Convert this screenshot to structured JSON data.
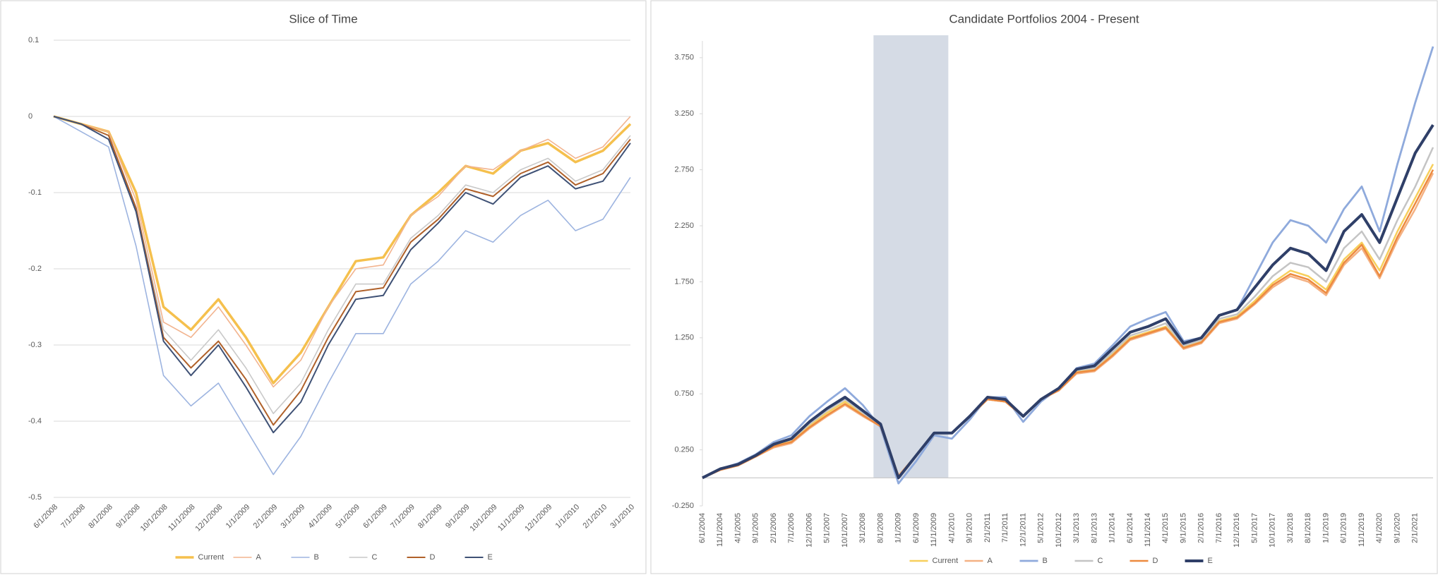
{
  "chart_data": [
    {
      "type": "line",
      "title": "Slice of Time",
      "categories": [
        "6/1/2008",
        "7/1/2008",
        "8/1/2008",
        "9/1/2008",
        "10/1/2008",
        "11/1/2008",
        "12/1/2008",
        "1/1/2009",
        "2/1/2009",
        "3/1/2009",
        "4/1/2009",
        "5/1/2009",
        "6/1/2009",
        "7/1/2009",
        "8/1/2009",
        "9/1/2009",
        "10/1/2009",
        "11/1/2009",
        "12/1/2009",
        "1/1/2010",
        "2/1/2010",
        "3/1/2010"
      ],
      "series": [
        {
          "name": "Current",
          "color": "#f5c04d",
          "values": [
            0,
            -0.01,
            -0.02,
            -0.1,
            -0.25,
            -0.28,
            -0.24,
            -0.29,
            -0.35,
            -0.31,
            -0.25,
            -0.19,
            -0.185,
            -0.13,
            -0.1,
            -0.065,
            -0.075,
            -0.045,
            -0.035,
            -0.06,
            -0.045,
            -0.01
          ]
        },
        {
          "name": "A",
          "color": "#f2b48f",
          "values": [
            0,
            -0.01,
            -0.02,
            -0.11,
            -0.27,
            -0.29,
            -0.25,
            -0.3,
            -0.355,
            -0.32,
            -0.25,
            -0.2,
            -0.195,
            -0.13,
            -0.105,
            -0.065,
            -0.07,
            -0.045,
            -0.03,
            -0.055,
            -0.04,
            0
          ]
        },
        {
          "name": "B",
          "color": "#9db4e0",
          "values": [
            0,
            -0.02,
            -0.04,
            -0.17,
            -0.34,
            -0.38,
            -0.35,
            -0.41,
            -0.47,
            -0.42,
            -0.35,
            -0.285,
            -0.285,
            -0.22,
            -0.19,
            -0.15,
            -0.165,
            -0.13,
            -0.11,
            -0.15,
            -0.135,
            -0.08
          ]
        },
        {
          "name": "C",
          "color": "#c9c9c9",
          "values": [
            0,
            -0.01,
            -0.025,
            -0.12,
            -0.28,
            -0.32,
            -0.28,
            -0.33,
            -0.39,
            -0.35,
            -0.28,
            -0.22,
            -0.22,
            -0.16,
            -0.13,
            -0.09,
            -0.1,
            -0.07,
            -0.055,
            -0.085,
            -0.07,
            -0.025
          ]
        },
        {
          "name": "D",
          "color": "#b0612a",
          "values": [
            0,
            -0.01,
            -0.025,
            -0.12,
            -0.29,
            -0.33,
            -0.295,
            -0.345,
            -0.405,
            -0.36,
            -0.29,
            -0.23,
            -0.225,
            -0.165,
            -0.135,
            -0.095,
            -0.105,
            -0.075,
            -0.06,
            -0.09,
            -0.075,
            -0.03
          ]
        },
        {
          "name": "E",
          "color": "#3f5175",
          "values": [
            0,
            -0.01,
            -0.03,
            -0.125,
            -0.295,
            -0.34,
            -0.3,
            -0.355,
            -0.415,
            -0.375,
            -0.3,
            -0.24,
            -0.235,
            -0.175,
            -0.14,
            -0.1,
            -0.115,
            -0.08,
            -0.065,
            -0.095,
            -0.085,
            -0.035
          ]
        }
      ],
      "ylim": [
        -0.5,
        0.1
      ],
      "yticks": [
        0.1,
        0,
        -0.1,
        -0.2,
        -0.3,
        -0.4,
        -0.5
      ],
      "grid": true,
      "legend": "bottom"
    },
    {
      "type": "line",
      "title": "Candidate Portfolios  2004 - Present",
      "categories": [
        "6/1/2004",
        "11/1/2004",
        "4/1/2005",
        "9/1/2005",
        "2/1/2006",
        "7/1/2006",
        "12/1/2006",
        "5/1/2007",
        "10/1/2007",
        "3/1/2008",
        "8/1/2008",
        "1/1/2009",
        "6/1/2009",
        "11/1/2009",
        "4/1/2010",
        "9/1/2010",
        "2/1/2011",
        "7/1/2011",
        "12/1/2011",
        "5/1/2012",
        "10/1/2012",
        "3/1/2013",
        "8/1/2013",
        "1/1/2014",
        "6/1/2014",
        "11/1/2014",
        "4/1/2015",
        "9/1/2015",
        "2/1/2016",
        "7/1/2016",
        "12/1/2016",
        "5/1/2017",
        "10/1/2017",
        "3/1/2018",
        "8/1/2018",
        "1/1/2019",
        "6/1/2019",
        "11/1/2019",
        "4/1/2020",
        "9/1/2020",
        "2/1/2021",
        null
      ],
      "series": [
        {
          "name": "Current",
          "color": "#f7cf5c",
          "values": [
            0,
            0.08,
            0.12,
            0.2,
            0.29,
            0.33,
            0.47,
            0.58,
            0.68,
            0.57,
            0.47,
            0.02,
            0.2,
            0.4,
            0.4,
            0.55,
            0.7,
            0.68,
            0.55,
            0.7,
            0.79,
            0.95,
            0.97,
            1.1,
            1.25,
            1.3,
            1.35,
            1.17,
            1.22,
            1.4,
            1.44,
            1.58,
            1.74,
            1.85,
            1.8,
            1.68,
            1.95,
            2.1,
            1.85,
            2.2,
            2.5,
            2.8
          ]
        },
        {
          "name": "A",
          "color": "#f4b183",
          "values": [
            0,
            0.07,
            0.11,
            0.19,
            0.27,
            0.31,
            0.44,
            0.55,
            0.65,
            0.55,
            0.46,
            0.02,
            0.2,
            0.4,
            0.4,
            0.55,
            0.7,
            0.68,
            0.55,
            0.7,
            0.78,
            0.93,
            0.95,
            1.08,
            1.23,
            1.28,
            1.33,
            1.15,
            1.2,
            1.38,
            1.42,
            1.55,
            1.7,
            1.8,
            1.75,
            1.63,
            1.9,
            2.05,
            1.78,
            2.12,
            2.4,
            2.72
          ]
        },
        {
          "name": "B",
          "color": "#8faadc",
          "values": [
            0,
            0.08,
            0.13,
            0.21,
            0.32,
            0.38,
            0.55,
            0.68,
            0.8,
            0.65,
            0.45,
            -0.05,
            0.15,
            0.38,
            0.35,
            0.52,
            0.72,
            0.72,
            0.5,
            0.68,
            0.8,
            0.98,
            1.02,
            1.18,
            1.35,
            1.42,
            1.48,
            1.22,
            1.25,
            1.45,
            1.5,
            1.8,
            2.1,
            2.3,
            2.25,
            2.1,
            2.4,
            2.6,
            2.2,
            2.8,
            3.35,
            3.85
          ]
        },
        {
          "name": "C",
          "color": "#c4c4c4",
          "values": [
            0,
            0.08,
            0.12,
            0.2,
            0.3,
            0.34,
            0.48,
            0.6,
            0.7,
            0.58,
            0.47,
            0,
            0.2,
            0.4,
            0.4,
            0.55,
            0.7,
            0.68,
            0.55,
            0.7,
            0.8,
            0.96,
            0.98,
            1.12,
            1.27,
            1.32,
            1.38,
            1.18,
            1.23,
            1.42,
            1.46,
            1.62,
            1.8,
            1.92,
            1.88,
            1.75,
            2.05,
            2.2,
            1.95,
            2.3,
            2.6,
            2.95
          ]
        },
        {
          "name": "D",
          "color": "#ed8a3f",
          "values": [
            0,
            0.07,
            0.11,
            0.19,
            0.28,
            0.32,
            0.45,
            0.56,
            0.66,
            0.56,
            0.46,
            0.01,
            0.2,
            0.4,
            0.4,
            0.55,
            0.7,
            0.68,
            0.55,
            0.7,
            0.78,
            0.94,
            0.96,
            1.09,
            1.24,
            1.29,
            1.34,
            1.16,
            1.21,
            1.39,
            1.43,
            1.56,
            1.72,
            1.82,
            1.77,
            1.65,
            1.92,
            2.08,
            1.8,
            2.15,
            2.45,
            2.75
          ]
        },
        {
          "name": "E",
          "color": "#2f3f68",
          "values": [
            0,
            0.08,
            0.12,
            0.2,
            0.3,
            0.35,
            0.5,
            0.62,
            0.72,
            0.6,
            0.48,
            0,
            0.2,
            0.4,
            0.4,
            0.55,
            0.72,
            0.7,
            0.55,
            0.7,
            0.8,
            0.97,
            1,
            1.15,
            1.3,
            1.35,
            1.42,
            1.2,
            1.25,
            1.45,
            1.5,
            1.7,
            1.9,
            2.05,
            2,
            1.85,
            2.2,
            2.35,
            2.1,
            2.5,
            2.9,
            3.15
          ]
        }
      ],
      "ylim": [
        -0.25,
        3.9
      ],
      "yticks": [
        {
          "value": -0.25,
          "label": "-0.250"
        },
        {
          "value": 0.25,
          "label": "0.250"
        },
        {
          "value": 0.75,
          "label": "0.750"
        },
        {
          "value": 1.25,
          "label": "1.250"
        },
        {
          "value": 1.75,
          "label": "1.750"
        },
        {
          "value": 2.25,
          "label": "2.250"
        },
        {
          "value": 2.75,
          "label": "2.750"
        },
        {
          "value": 3.25,
          "label": "3.250"
        },
        {
          "value": 3.75,
          "label": "3.750"
        }
      ],
      "grid": false,
      "legend": "bottom",
      "highlight": {
        "from": "6/1/2008",
        "to": "3/1/2010",
        "color": "#d5dbe5"
      }
    }
  ]
}
